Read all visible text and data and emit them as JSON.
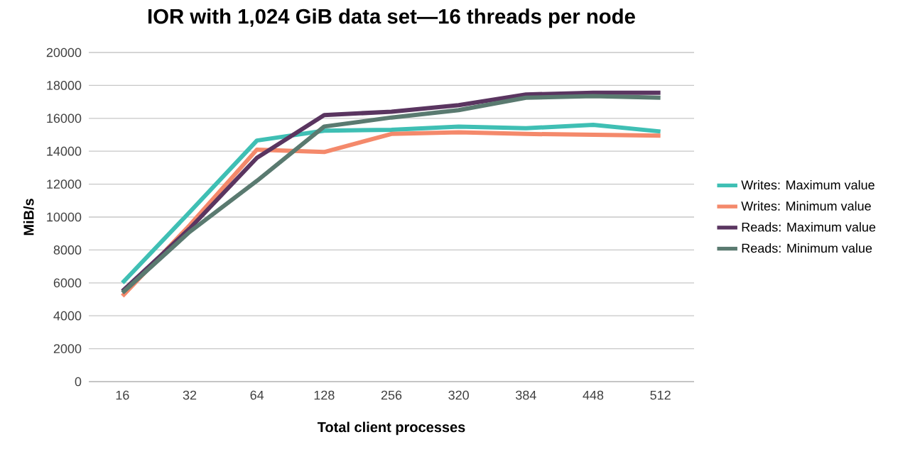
{
  "chart_data": {
    "type": "line",
    "title": "IOR with 1,024 GiB data set—16 threads per node",
    "xlabel": "Total client processes",
    "ylabel": "MiB/s",
    "categories": [
      "16",
      "32",
      "64",
      "128",
      "256",
      "320",
      "384",
      "448",
      "512"
    ],
    "series": [
      {
        "name": "Writes: Maximum value",
        "color": "#3fbfb4",
        "values": [
          6000,
          10300,
          14650,
          15250,
          15300,
          15500,
          15400,
          15600,
          15200
        ]
      },
      {
        "name": "Writes: Minimum value",
        "color": "#f4896b",
        "values": [
          5200,
          9500,
          14100,
          13950,
          15050,
          15150,
          15050,
          15000,
          14950
        ]
      },
      {
        "name": "Reads: Maximum value",
        "color": "#5a3560",
        "values": [
          5500,
          9300,
          13600,
          16200,
          16400,
          16800,
          17450,
          17550,
          17550
        ]
      },
      {
        "name": "Reads: Minimum value",
        "color": "#5a7a70",
        "values": [
          5400,
          9100,
          12200,
          15500,
          16050,
          16500,
          17250,
          17350,
          17250
        ]
      }
    ],
    "ylim": [
      0,
      20000
    ],
    "yticks": [
      0,
      2000,
      4000,
      6000,
      8000,
      10000,
      12000,
      14000,
      16000,
      18000,
      20000
    ],
    "grid": "y",
    "legend": "right",
    "marker": "none",
    "line_style": "solid"
  }
}
